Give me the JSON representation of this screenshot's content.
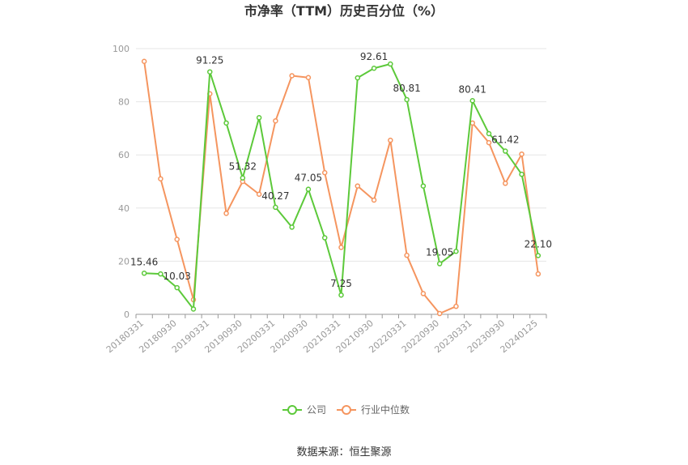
{
  "chart_data": {
    "type": "line",
    "title": "市净率（TTM）历史百分位（%）",
    "xlabel": "",
    "ylabel": "",
    "ylim": [
      0,
      100
    ],
    "yticks": [
      0,
      20,
      40,
      60,
      80,
      100
    ],
    "grid": true,
    "legend_position": "bottom",
    "x": [
      "20180331",
      "20180630",
      "20180930",
      "20181231",
      "20190331",
      "20190630",
      "20190930",
      "20191231",
      "20200331",
      "20200630",
      "20200930",
      "20201231",
      "20210331",
      "20210630",
      "20210930",
      "20211231",
      "20220331",
      "20220630",
      "20220930",
      "20221231",
      "20230331",
      "20230630",
      "20230930",
      "20231231",
      "20240125"
    ],
    "xtick_labels": [
      "20180331",
      "20180930",
      "20190331",
      "20190930",
      "20200331",
      "20200930",
      "20210331",
      "20210930",
      "20220331",
      "20220930",
      "20230331",
      "20230930",
      "20240125"
    ],
    "series": [
      {
        "name": "公司",
        "color": "#5cc93a",
        "values": [
          15.46,
          15.2,
          10.03,
          2.0,
          91.25,
          72.0,
          51.32,
          74.0,
          40.27,
          32.8,
          47.05,
          28.8,
          7.25,
          89.0,
          92.61,
          94.2,
          80.81,
          48.3,
          19.05,
          23.7,
          80.41,
          68.0,
          61.42,
          52.7,
          22.1
        ],
        "labels": {
          "0": "15.46",
          "2": "10.03",
          "4": "91.25",
          "6": "51.32",
          "8": "40.27",
          "10": "47.05",
          "12": "7.25",
          "14": "92.61",
          "16": "80.81",
          "18": "19.05",
          "20": "80.41",
          "22": "61.42",
          "24": "22.10"
        }
      },
      {
        "name": "行业中位数",
        "color": "#f5955f",
        "values": [
          95.2,
          51.0,
          28.2,
          5.5,
          83.0,
          38.0,
          50.0,
          45.2,
          72.8,
          89.8,
          89.1,
          53.3,
          25.2,
          48.3,
          43.0,
          65.5,
          22.2,
          7.8,
          0.3,
          3.0,
          72.0,
          64.6,
          49.3,
          60.3,
          15.2
        ]
      }
    ]
  },
  "footer": {
    "source": "数据来源：恒生聚源"
  }
}
